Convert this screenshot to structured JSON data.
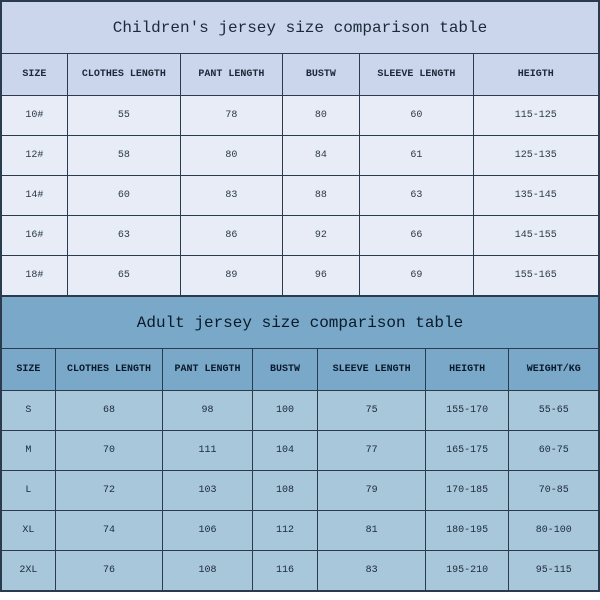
{
  "children": {
    "title": "Children's jersey size comparison table",
    "columns": [
      "SIZE",
      "CLOTHES LENGTH",
      "PANT LENGTH",
      "BUSTW",
      "SLEEVE LENGTH",
      "HEIGTH"
    ],
    "rows": [
      [
        "10#",
        "55",
        "78",
        "80",
        "60",
        "115-125"
      ],
      [
        "12#",
        "58",
        "80",
        "84",
        "61",
        "125-135"
      ],
      [
        "14#",
        "60",
        "83",
        "88",
        "63",
        "135-145"
      ],
      [
        "16#",
        "63",
        "86",
        "92",
        "66",
        "145-155"
      ],
      [
        "18#",
        "65",
        "89",
        "96",
        "69",
        "155-165"
      ]
    ],
    "col_widths": [
      "11%",
      "19%",
      "17%",
      "13%",
      "19%",
      "21%"
    ]
  },
  "adult": {
    "title": "Adult jersey size comparison table",
    "columns": [
      "SIZE",
      "CLOTHES LENGTH",
      "PANT LENGTH",
      "BUSTW",
      "SLEEVE LENGTH",
      "HEIGTH",
      "WEIGHT/KG"
    ],
    "rows": [
      [
        "S",
        "68",
        "98",
        "100",
        "75",
        "155-170",
        "55-65"
      ],
      [
        "M",
        "70",
        "111",
        "104",
        "77",
        "165-175",
        "60-75"
      ],
      [
        "L",
        "72",
        "103",
        "108",
        "79",
        "170-185",
        "70-85"
      ],
      [
        "XL",
        "74",
        "106",
        "112",
        "81",
        "180-195",
        "80-100"
      ],
      [
        "2XL",
        "76",
        "108",
        "116",
        "83",
        "195-210",
        "95-115"
      ]
    ],
    "col_widths": [
      "9%",
      "18%",
      "15%",
      "11%",
      "18%",
      "14%",
      "15%"
    ]
  }
}
